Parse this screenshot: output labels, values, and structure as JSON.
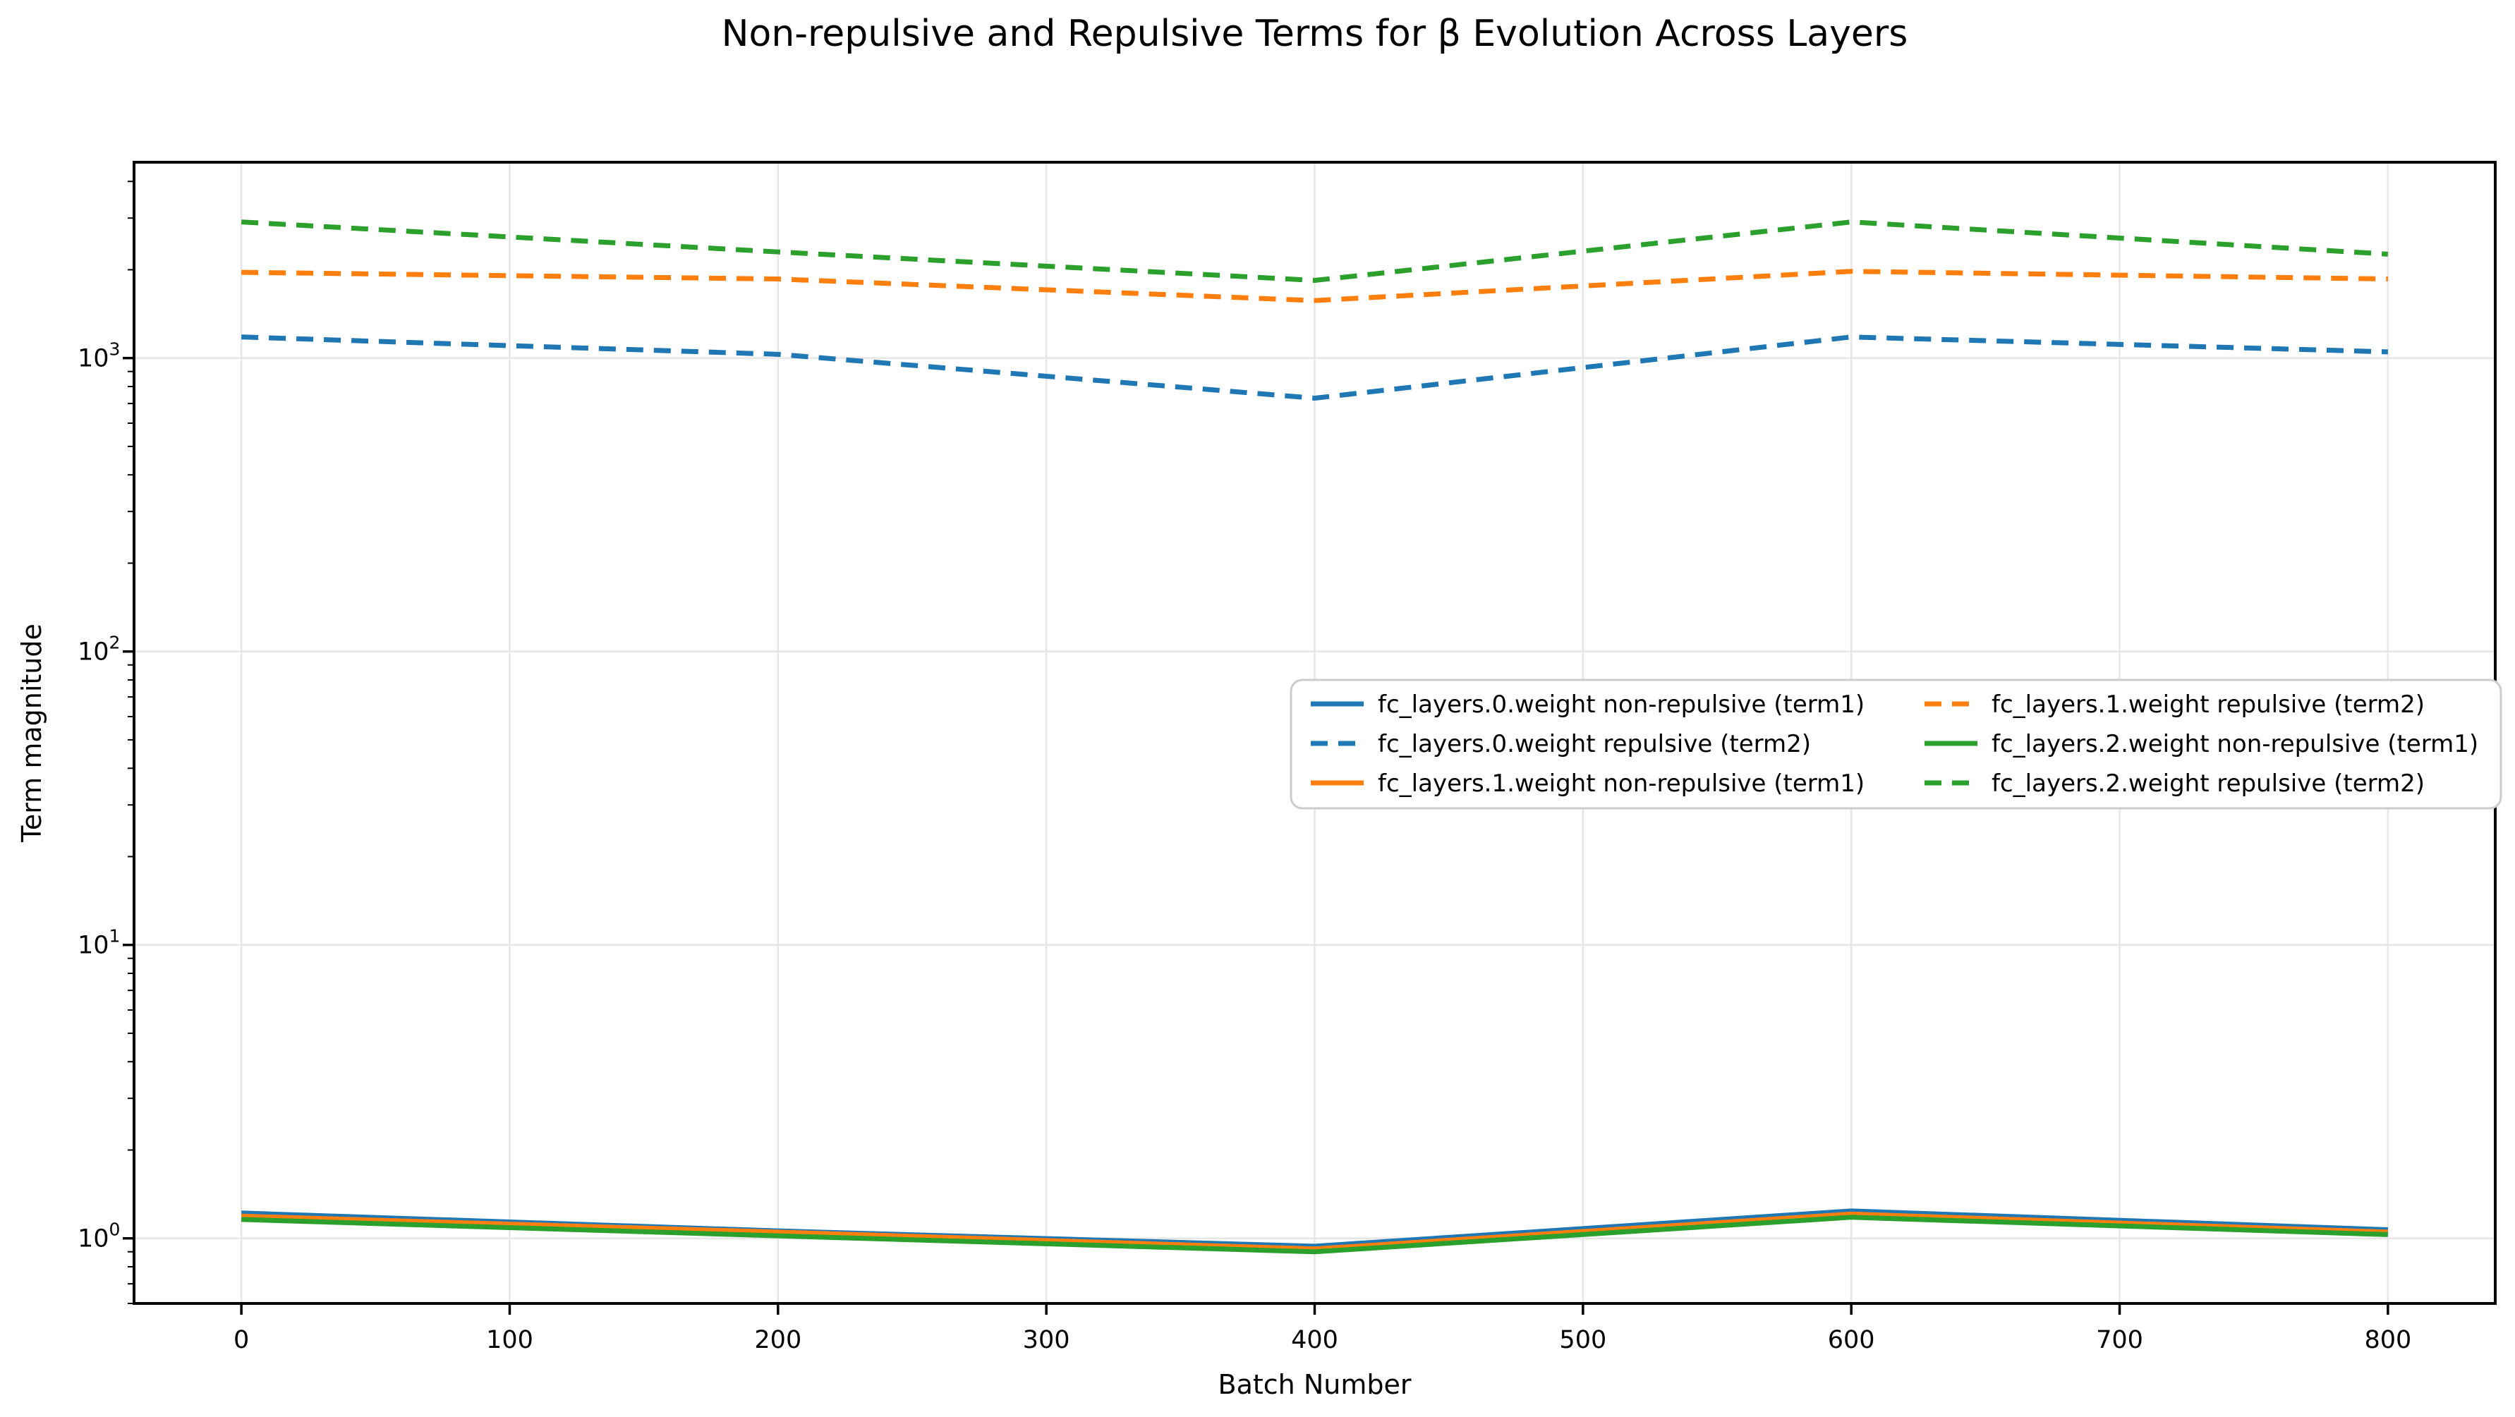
{
  "page": {
    "background": "#ffffff",
    "text_color": "#000000",
    "grid_color": "#e6e6e6",
    "spine_color": "#000000",
    "legend_border_color": "#cccccc"
  },
  "chart_data": {
    "type": "line",
    "title": "Non-repulsive and Repulsive Terms for β Evolution Across Layers",
    "xlabel": "Batch Number",
    "ylabel": "Term magnitude",
    "yscale": "log",
    "grid": true,
    "xlim": [
      -40,
      840
    ],
    "ylim": [
      0.6,
      4650
    ],
    "x_ticks": [
      0,
      100,
      200,
      300,
      400,
      500,
      600,
      700,
      800
    ],
    "y_tick_exponents": [
      0,
      1,
      2,
      3
    ],
    "x": [
      0,
      200,
      400,
      600,
      800
    ],
    "series": [
      {
        "name": "fc_layers.0.weight non-repulsive (term1)",
        "color": "#1f77b4",
        "dash": "solid",
        "values": [
          1.22,
          1.06,
          0.94,
          1.24,
          1.07
        ]
      },
      {
        "name": "fc_layers.0.weight repulsive (term2)",
        "color": "#1f77b4",
        "dash": "dashed",
        "values": [
          1180,
          1030,
          730,
          1180,
          1050
        ]
      },
      {
        "name": "fc_layers.1.weight non-repulsive (term1)",
        "color": "#ff7f0e",
        "dash": "solid",
        "values": [
          1.19,
          1.05,
          0.92,
          1.21,
          1.05
        ]
      },
      {
        "name": "fc_layers.1.weight repulsive (term2)",
        "color": "#ff7f0e",
        "dash": "dashed",
        "values": [
          1960,
          1860,
          1570,
          1975,
          1860
        ]
      },
      {
        "name": "fc_layers.2.weight non-repulsive (term1)",
        "color": "#2ca02c",
        "dash": "solid",
        "values": [
          1.16,
          1.02,
          0.9,
          1.18,
          1.03
        ]
      },
      {
        "name": "fc_layers.2.weight repulsive (term2)",
        "color": "#2ca02c",
        "dash": "dashed",
        "values": [
          2910,
          2300,
          1840,
          2910,
          2260
        ]
      }
    ],
    "legend": {
      "columns": 2,
      "order": "column-major",
      "position": "center-right"
    }
  }
}
